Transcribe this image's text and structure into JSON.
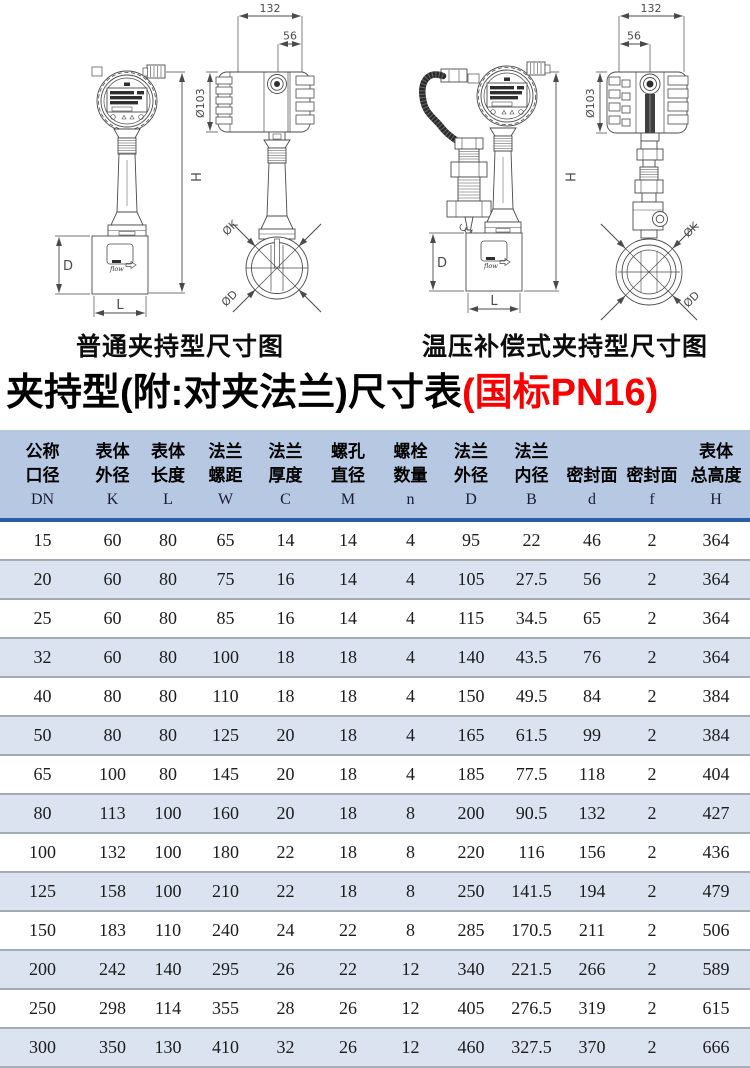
{
  "diagrams": {
    "captions": {
      "left": "普通夹持型尺寸图",
      "right": "温压补偿式夹持型尺寸图"
    },
    "labels": {
      "w132": "132",
      "w56": "56",
      "d103": "Ø103",
      "h": "H",
      "d": "D",
      "l": "L",
      "dk": "ØK",
      "dd": "ØD",
      "flow": "flow"
    }
  },
  "title": {
    "main": "夹持型(附:对夹法兰)尺寸表",
    "highlight": "(国标PN16)"
  },
  "colors": {
    "highlight_red": "#fa0000",
    "header_bg": "#b6c8e2",
    "stripe_bg": "#dbe3f1",
    "header_rule": "#2a5ca8"
  },
  "table": {
    "headers": [
      {
        "cn": "公称\n口径",
        "sym": "DN"
      },
      {
        "cn": "表体\n外径",
        "sym": "K"
      },
      {
        "cn": "表体\n长度",
        "sym": "L"
      },
      {
        "cn": "法兰\n螺距",
        "sym": "W"
      },
      {
        "cn": "法兰\n厚度",
        "sym": "C"
      },
      {
        "cn": "螺孔\n直径",
        "sym": "M"
      },
      {
        "cn": "螺栓\n数量",
        "sym": "n"
      },
      {
        "cn": "法兰\n外径",
        "sym": "D"
      },
      {
        "cn": "法兰\n内径",
        "sym": "B"
      },
      {
        "cn": "密封面",
        "sym": "d"
      },
      {
        "cn": "密封面",
        "sym": "f"
      },
      {
        "cn": "表体\n总高度",
        "sym": "H"
      }
    ],
    "rows": [
      [
        15,
        60,
        80,
        65,
        14,
        14,
        4,
        95,
        22,
        46,
        2,
        364
      ],
      [
        20,
        60,
        80,
        75,
        16,
        14,
        4,
        105,
        27.5,
        56,
        2,
        364
      ],
      [
        25,
        60,
        80,
        85,
        16,
        14,
        4,
        115,
        34.5,
        65,
        2,
        364
      ],
      [
        32,
        60,
        80,
        100,
        18,
        18,
        4,
        140,
        43.5,
        76,
        2,
        364
      ],
      [
        40,
        80,
        80,
        110,
        18,
        18,
        4,
        150,
        49.5,
        84,
        2,
        384
      ],
      [
        50,
        80,
        80,
        125,
        20,
        18,
        4,
        165,
        61.5,
        99,
        2,
        384
      ],
      [
        65,
        100,
        80,
        145,
        20,
        18,
        4,
        185,
        77.5,
        118,
        2,
        404
      ],
      [
        80,
        113,
        100,
        160,
        20,
        18,
        8,
        200,
        90.5,
        132,
        2,
        427
      ],
      [
        100,
        132,
        100,
        180,
        22,
        18,
        8,
        220,
        116,
        156,
        2,
        436
      ],
      [
        125,
        158,
        100,
        210,
        22,
        18,
        8,
        250,
        141.5,
        194,
        2,
        479
      ],
      [
        150,
        183,
        110,
        240,
        24,
        22,
        8,
        285,
        170.5,
        211,
        2,
        506
      ],
      [
        200,
        242,
        140,
        295,
        26,
        22,
        12,
        340,
        221.5,
        266,
        2,
        589
      ],
      [
        250,
        298,
        114,
        355,
        28,
        26,
        12,
        405,
        276.5,
        319,
        2,
        615
      ],
      [
        300,
        350,
        130,
        410,
        32,
        26,
        12,
        460,
        327.5,
        370,
        2,
        666
      ]
    ]
  }
}
